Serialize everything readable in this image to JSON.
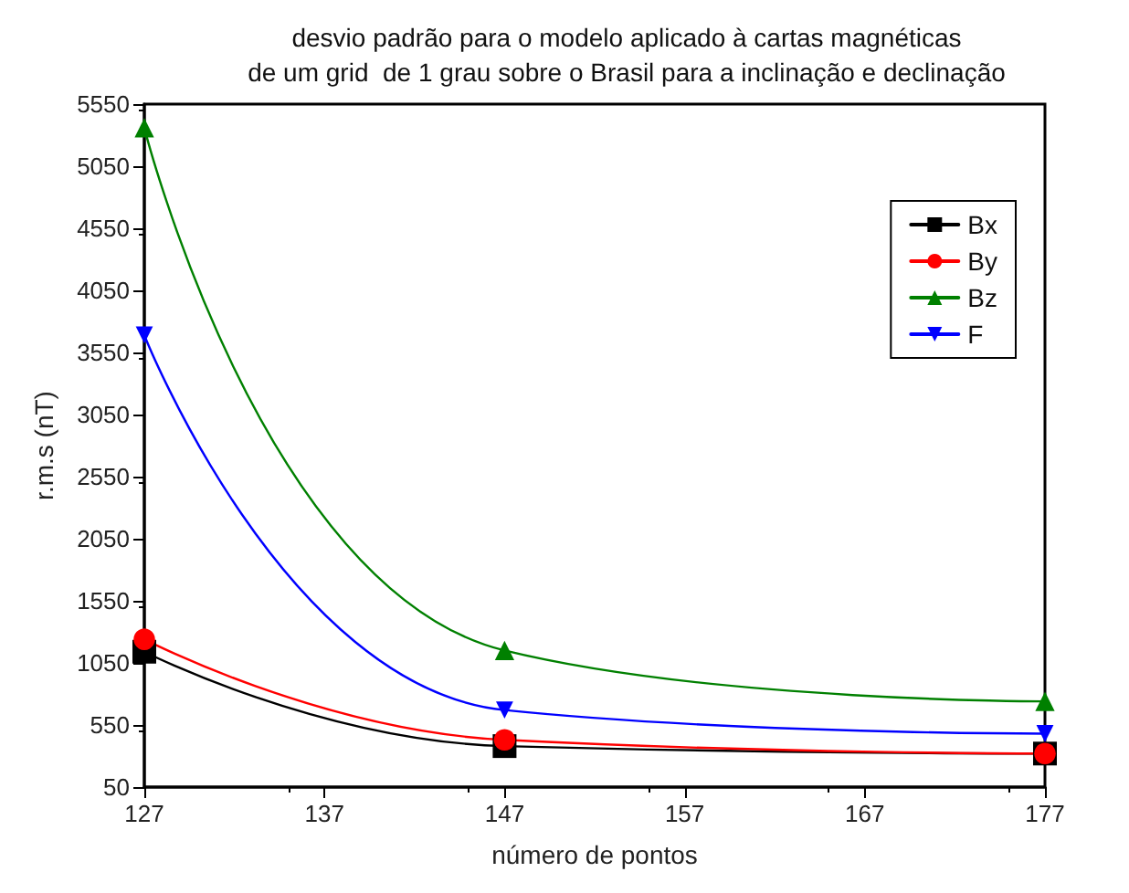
{
  "chart_data": {
    "type": "line",
    "title": "desvio padrão para o modelo aplicado à cartas magnéticas\nde um grid  de 1 grau sobre o Brasil para a inclinação e declinação",
    "xlabel": "número de pontos",
    "ylabel": "r.m.s (nT)",
    "x": [
      127,
      147,
      177
    ],
    "series": [
      {
        "name": "Bx",
        "color": "#000000",
        "marker": "square",
        "values": [
          1140,
          380,
          320
        ]
      },
      {
        "name": "By",
        "color": "#ff0000",
        "marker": "circle",
        "values": [
          1240,
          430,
          320
        ]
      },
      {
        "name": "Bz",
        "color": "#008000",
        "marker": "triangle",
        "values": [
          5360,
          1150,
          740
        ]
      },
      {
        "name": "F",
        "color": "#0000ff",
        "marker": "triangle-down",
        "values": [
          3690,
          670,
          480
        ]
      }
    ],
    "xlim": [
      127,
      177
    ],
    "xticks": [
      127,
      137,
      147,
      157,
      167,
      177
    ],
    "ylim": [
      50,
      5550
    ],
    "yticks": [
      50,
      550,
      1050,
      1550,
      2050,
      2550,
      3050,
      3550,
      4050,
      4550,
      5050,
      5550
    ],
    "grid": false,
    "legend": "top right",
    "line_style": "solid"
  }
}
